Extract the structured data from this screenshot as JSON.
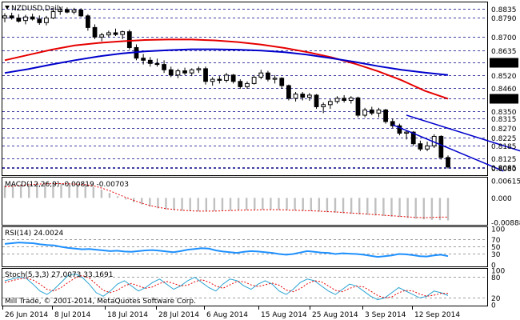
{
  "chart_data": [
    {
      "type": "candlestick",
      "title": "NZDUSD,Daily",
      "ylim": [
        0.805,
        0.886
      ],
      "price_labels": [
        "0.8835",
        "0.8790",
        "0.8700",
        "0.8635",
        "0.8580",
        "0.8520",
        "0.8460",
        "0.8410",
        "0.8350",
        "0.8315",
        "0.8270",
        "0.8225",
        "0.8185",
        "0.8125",
        "0.8085",
        "0.8080"
      ],
      "highlight_labels": [
        "0.8580",
        "0.8410"
      ],
      "candles": [
        {
          "o": 0.879,
          "h": 0.8812,
          "l": 0.877,
          "c": 0.88
        },
        {
          "o": 0.88,
          "h": 0.8815,
          "l": 0.8782,
          "c": 0.879
        },
        {
          "o": 0.879,
          "h": 0.8808,
          "l": 0.8768,
          "c": 0.8775
        },
        {
          "o": 0.8778,
          "h": 0.8805,
          "l": 0.876,
          "c": 0.8795
        },
        {
          "o": 0.8795,
          "h": 0.881,
          "l": 0.8778,
          "c": 0.8785
        },
        {
          "o": 0.8785,
          "h": 0.8802,
          "l": 0.8758,
          "c": 0.8768
        },
        {
          "o": 0.8768,
          "h": 0.88,
          "l": 0.8755,
          "c": 0.879
        },
        {
          "o": 0.879,
          "h": 0.883,
          "l": 0.8785,
          "c": 0.882
        },
        {
          "o": 0.882,
          "h": 0.8842,
          "l": 0.8805,
          "c": 0.883
        },
        {
          "o": 0.883,
          "h": 0.884,
          "l": 0.8812,
          "c": 0.8818
        },
        {
          "o": 0.8818,
          "h": 0.8838,
          "l": 0.8808,
          "c": 0.8828
        },
        {
          "o": 0.8828,
          "h": 0.8836,
          "l": 0.8795,
          "c": 0.88
        },
        {
          "o": 0.88,
          "h": 0.8808,
          "l": 0.873,
          "c": 0.8745
        },
        {
          "o": 0.8745,
          "h": 0.876,
          "l": 0.869,
          "c": 0.87
        },
        {
          "o": 0.87,
          "h": 0.872,
          "l": 0.868,
          "c": 0.871
        },
        {
          "o": 0.871,
          "h": 0.873,
          "l": 0.87,
          "c": 0.872
        },
        {
          "o": 0.872,
          "h": 0.874,
          "l": 0.8705,
          "c": 0.8712
        },
        {
          "o": 0.8712,
          "h": 0.873,
          "l": 0.869,
          "c": 0.8725
        },
        {
          "o": 0.8725,
          "h": 0.8735,
          "l": 0.864,
          "c": 0.865
        },
        {
          "o": 0.865,
          "h": 0.8665,
          "l": 0.859,
          "c": 0.86
        },
        {
          "o": 0.86,
          "h": 0.862,
          "l": 0.857,
          "c": 0.859
        },
        {
          "o": 0.859,
          "h": 0.8605,
          "l": 0.856,
          "c": 0.8575
        },
        {
          "o": 0.8575,
          "h": 0.8598,
          "l": 0.856,
          "c": 0.857
        },
        {
          "o": 0.857,
          "h": 0.859,
          "l": 0.853,
          "c": 0.8545
        },
        {
          "o": 0.8545,
          "h": 0.856,
          "l": 0.851,
          "c": 0.852
        },
        {
          "o": 0.852,
          "h": 0.855,
          "l": 0.8505,
          "c": 0.854
        },
        {
          "o": 0.854,
          "h": 0.8555,
          "l": 0.852,
          "c": 0.853
        },
        {
          "o": 0.853,
          "h": 0.8552,
          "l": 0.8515,
          "c": 0.8545
        },
        {
          "o": 0.8545,
          "h": 0.856,
          "l": 0.853,
          "c": 0.855
        },
        {
          "o": 0.855,
          "h": 0.856,
          "l": 0.8475,
          "c": 0.849
        },
        {
          "o": 0.849,
          "h": 0.851,
          "l": 0.847,
          "c": 0.85
        },
        {
          "o": 0.85,
          "h": 0.8515,
          "l": 0.848,
          "c": 0.8495
        },
        {
          "o": 0.8495,
          "h": 0.853,
          "l": 0.8485,
          "c": 0.852
        },
        {
          "o": 0.852,
          "h": 0.8525,
          "l": 0.848,
          "c": 0.849
        },
        {
          "o": 0.849,
          "h": 0.85,
          "l": 0.8455,
          "c": 0.8465
        },
        {
          "o": 0.8465,
          "h": 0.849,
          "l": 0.8455,
          "c": 0.848
        },
        {
          "o": 0.848,
          "h": 0.852,
          "l": 0.8475,
          "c": 0.851
        },
        {
          "o": 0.851,
          "h": 0.8545,
          "l": 0.85,
          "c": 0.853
        },
        {
          "o": 0.853,
          "h": 0.854,
          "l": 0.849,
          "c": 0.85
        },
        {
          "o": 0.85,
          "h": 0.852,
          "l": 0.848,
          "c": 0.8505
        },
        {
          "o": 0.8505,
          "h": 0.851,
          "l": 0.8455,
          "c": 0.847
        },
        {
          "o": 0.847,
          "h": 0.8475,
          "l": 0.84,
          "c": 0.841
        },
        {
          "o": 0.841,
          "h": 0.844,
          "l": 0.8395,
          "c": 0.843
        },
        {
          "o": 0.843,
          "h": 0.844,
          "l": 0.84,
          "c": 0.8415
        },
        {
          "o": 0.8415,
          "h": 0.8435,
          "l": 0.8398,
          "c": 0.8425
        },
        {
          "o": 0.8425,
          "h": 0.843,
          "l": 0.836,
          "c": 0.837
        },
        {
          "o": 0.837,
          "h": 0.839,
          "l": 0.834,
          "c": 0.838
        },
        {
          "o": 0.838,
          "h": 0.8405,
          "l": 0.836,
          "c": 0.8395
        },
        {
          "o": 0.8395,
          "h": 0.842,
          "l": 0.8385,
          "c": 0.841
        },
        {
          "o": 0.841,
          "h": 0.8425,
          "l": 0.839,
          "c": 0.84
        },
        {
          "o": 0.84,
          "h": 0.842,
          "l": 0.8385,
          "c": 0.8412
        },
        {
          "o": 0.8412,
          "h": 0.8418,
          "l": 0.832,
          "c": 0.833
        },
        {
          "o": 0.833,
          "h": 0.8365,
          "l": 0.832,
          "c": 0.8355
        },
        {
          "o": 0.8355,
          "h": 0.837,
          "l": 0.833,
          "c": 0.834
        },
        {
          "o": 0.834,
          "h": 0.8365,
          "l": 0.832,
          "c": 0.8355
        },
        {
          "o": 0.8355,
          "h": 0.836,
          "l": 0.829,
          "c": 0.83
        },
        {
          "o": 0.83,
          "h": 0.8315,
          "l": 0.827,
          "c": 0.828
        },
        {
          "o": 0.828,
          "h": 0.829,
          "l": 0.8235,
          "c": 0.8245
        },
        {
          "o": 0.8245,
          "h": 0.826,
          "l": 0.8215,
          "c": 0.825
        },
        {
          "o": 0.825,
          "h": 0.8255,
          "l": 0.8185,
          "c": 0.8195
        },
        {
          "o": 0.8195,
          "h": 0.821,
          "l": 0.816,
          "c": 0.817
        },
        {
          "o": 0.817,
          "h": 0.8205,
          "l": 0.816,
          "c": 0.8185
        },
        {
          "o": 0.8185,
          "h": 0.824,
          "l": 0.8175,
          "c": 0.823
        },
        {
          "o": 0.823,
          "h": 0.8235,
          "l": 0.812,
          "c": 0.813
        },
        {
          "o": 0.813,
          "h": 0.814,
          "l": 0.8078,
          "c": 0.8085
        }
      ],
      "series": [
        {
          "name": "",
          "color": "#e60000",
          "values": [
            0.859,
            0.8615,
            0.864,
            0.866,
            0.8672,
            0.868,
            0.8686,
            0.8688,
            0.8688,
            0.8684,
            0.8676,
            0.8664,
            0.8648,
            0.8628,
            0.8604,
            0.8574,
            0.8538,
            0.8496,
            0.8446,
            0.8408
          ]
        },
        {
          "name": "",
          "color": "#0000cc",
          "values": [
            0.853,
            0.8548,
            0.857,
            0.859,
            0.8608,
            0.8622,
            0.8632,
            0.8638,
            0.8642,
            0.8642,
            0.864,
            0.8636,
            0.8628,
            0.8616,
            0.86,
            0.8582,
            0.8562,
            0.8545,
            0.8532,
            0.852
          ]
        }
      ],
      "channel": [
        {
          "from": [
            58,
            0.833
          ],
          "to": [
            76,
            0.8145
          ]
        },
        {
          "from": [
            56,
            0.8285
          ],
          "to": [
            72,
            0.8066
          ]
        }
      ]
    },
    {
      "type": "bar",
      "title": "MACD(12,26,9) -0.00819 -0.00703",
      "ylim": [
        -0.0095,
        0.0068
      ],
      "tick_labels": [
        "0.00615",
        "0.000",
        "-0.00888"
      ],
      "values": [
        0.0045,
        0.0048,
        0.005,
        0.0052,
        0.0053,
        0.0054,
        0.0054,
        0.0053,
        0.0052,
        0.0049,
        0.0046,
        0.004,
        0.003,
        0.0018,
        0.0006,
        -0.0006,
        -0.0016,
        -0.0024,
        -0.0032,
        -0.0038,
        -0.0042,
        -0.0045,
        -0.0047,
        -0.0048,
        -0.0049,
        -0.0049,
        -0.0048,
        -0.0047,
        -0.0046,
        -0.0045,
        -0.0044,
        -0.0043,
        -0.0043,
        -0.0043,
        -0.0044,
        -0.0045,
        -0.0046,
        -0.0047,
        -0.0048,
        -0.005,
        -0.0052,
        -0.0054,
        -0.0056,
        -0.0058,
        -0.006,
        -0.0062,
        -0.0064,
        -0.0066,
        -0.0068,
        -0.007,
        -0.0073,
        -0.0076,
        -0.0078,
        -0.008,
        -0.0081,
        -0.0082
      ],
      "signal": [
        0.004,
        0.0043,
        0.0046,
        0.0048,
        0.005,
        0.0051,
        0.0052,
        0.0052,
        0.0051,
        0.005,
        0.0048,
        0.0044,
        0.0036,
        0.0026,
        0.0014,
        0.0002,
        -0.0009,
        -0.0019,
        -0.0028,
        -0.0034,
        -0.0039,
        -0.0042,
        -0.0045,
        -0.0047,
        -0.0048,
        -0.0048,
        -0.0048,
        -0.0047,
        -0.0046,
        -0.0045,
        -0.0044,
        -0.0044,
        -0.0043,
        -0.0043,
        -0.0043,
        -0.0044,
        -0.0045,
        -0.0046,
        -0.0047,
        -0.0048,
        -0.005,
        -0.0051,
        -0.0053,
        -0.0055,
        -0.0057,
        -0.0059,
        -0.0061,
        -0.0063,
        -0.0065,
        -0.0067,
        -0.0069,
        -0.0071,
        -0.0072,
        -0.0071,
        -0.007,
        -0.007
      ]
    },
    {
      "type": "line",
      "title": "RSI(14) 24.0024",
      "ylim": [
        0,
        100
      ],
      "tick_labels": [
        "100",
        "70",
        "50",
        "30",
        "0"
      ],
      "levels": [
        70,
        50,
        30
      ],
      "values": [
        58,
        60,
        62,
        61,
        60,
        57,
        55,
        54,
        50,
        47,
        45,
        43,
        44,
        42,
        40,
        38,
        39,
        37,
        36,
        38,
        40,
        41,
        39,
        37,
        35,
        38,
        42,
        44,
        46,
        45,
        40,
        37,
        35,
        33,
        36,
        38,
        37,
        35,
        33,
        30,
        28,
        30,
        34,
        38,
        36,
        34,
        33,
        30,
        32,
        31,
        30,
        28,
        25,
        22,
        24,
        26,
        30,
        29,
        27,
        24,
        23,
        26,
        28,
        24
      ]
    },
    {
      "type": "line",
      "title": "Stoch(5,3,3) 27.0073 33.1691",
      "ylim": [
        0,
        100
      ],
      "tick_labels": [
        "100",
        "80",
        "20",
        "0"
      ],
      "levels": [
        80,
        20
      ],
      "main": [
        70,
        75,
        80,
        78,
        60,
        40,
        30,
        45,
        65,
        85,
        90,
        80,
        60,
        35,
        25,
        40,
        60,
        70,
        55,
        40,
        50,
        65,
        75,
        60,
        45,
        55,
        70,
        80,
        65,
        50,
        40,
        60,
        75,
        70,
        55,
        45,
        60,
        70,
        60,
        40,
        30,
        45,
        65,
        75,
        70,
        55,
        40,
        30,
        45,
        60,
        55,
        40,
        25,
        15,
        20,
        35,
        50,
        40,
        30,
        20,
        25,
        40,
        35,
        27
      ],
      "signal": [
        65,
        70,
        75,
        78,
        72,
        60,
        45,
        40,
        50,
        65,
        78,
        85,
        78,
        60,
        42,
        35,
        42,
        55,
        62,
        55,
        48,
        52,
        62,
        68,
        62,
        55,
        57,
        67,
        73,
        66,
        55,
        48,
        58,
        68,
        67,
        58,
        53,
        58,
        63,
        57,
        43,
        38,
        47,
        61,
        70,
        67,
        55,
        42,
        38,
        48,
        54,
        52,
        40,
        27,
        20,
        23,
        35,
        42,
        40,
        31,
        25,
        28,
        33,
        33
      ]
    }
  ],
  "x_axis": {
    "labels": [
      "26 Jun 2014",
      "8 Jul 2014",
      "18 Jul 2014",
      "28 Jul 2014",
      "6 Aug 2014",
      "15 Aug 2014",
      "25 Aug 2014",
      "3 Sep 2014",
      "12 Sep 2014"
    ]
  },
  "watermark": "Mill Trade, © 2001-2014, MetaQuotes Software Corp.",
  "colors": {
    "grid": "#000080",
    "ma_fast": "#e60000",
    "ma_slow": "#0000cc",
    "rsi": "#1e90ff",
    "stoch_main": "#29a3d1",
    "stoch_signal": "#e60000",
    "macd_hist": "#c0c0c0",
    "macd_signal": "#e60000",
    "channel": "#0000cc",
    "highlight": "#000000"
  }
}
